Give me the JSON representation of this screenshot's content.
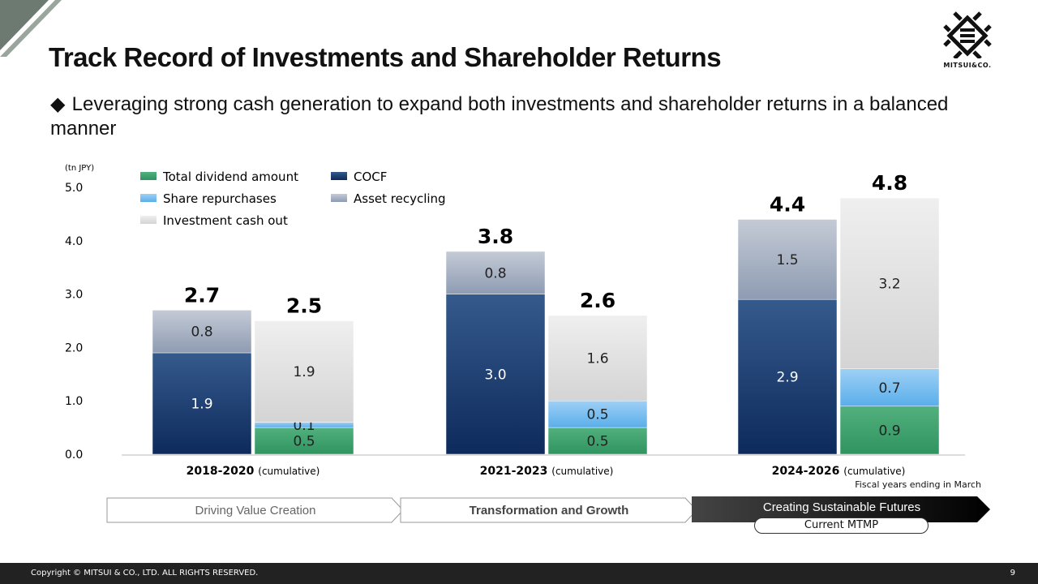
{
  "header": {
    "title": "Track Record of Investments and Shareholder Returns",
    "subtitle": "Leveraging strong cash generation to expand both investments and shareholder returns in a balanced manner",
    "bullet": "◆"
  },
  "logo": {
    "text": "MITSUI&CO."
  },
  "chart_data": {
    "type": "bar",
    "stacked": true,
    "ylabel": "(tn JPY)",
    "ylim": [
      0,
      5
    ],
    "yticks": [
      "0.0",
      "1.0",
      "2.0",
      "3.0",
      "4.0",
      "5.0"
    ],
    "grid": false,
    "legend_position": "top-left",
    "colors": {
      "Total dividend amount": "#3a9e68",
      "Share repurchases": "#6db8ef",
      "Investment cash out": "#e2e2e2",
      "COCF": "#173a70",
      "Asset recycling": "#a6b1c3"
    },
    "legend": [
      "Total dividend amount",
      "COCF",
      "Share repurchases",
      "Asset recycling",
      "Investment cash out"
    ],
    "groups": [
      {
        "label": "2018-2020",
        "suffix": "(cumulative)",
        "bars": [
          {
            "total": "2.7",
            "segments": [
              {
                "series": "COCF",
                "value": 1.9
              },
              {
                "series": "Asset recycling",
                "value": 0.8
              }
            ]
          },
          {
            "total": "2.5",
            "segments": [
              {
                "series": "Total dividend amount",
                "value": 0.5
              },
              {
                "series": "Share repurchases",
                "value": 0.1
              },
              {
                "series": "Investment cash out",
                "value": 1.9
              }
            ]
          }
        ]
      },
      {
        "label": "2021-2023",
        "suffix": "(cumulative)",
        "bars": [
          {
            "total": "3.8",
            "segments": [
              {
                "series": "COCF",
                "value": 3.0
              },
              {
                "series": "Asset recycling",
                "value": 0.8
              }
            ]
          },
          {
            "total": "2.6",
            "segments": [
              {
                "series": "Total dividend amount",
                "value": 0.5
              },
              {
                "series": "Share repurchases",
                "value": 0.5
              },
              {
                "series": "Investment cash out",
                "value": 1.6
              }
            ]
          }
        ]
      },
      {
        "label": "2024-2026",
        "suffix": "(cumulative)",
        "bars": [
          {
            "total": "4.4",
            "segments": [
              {
                "series": "COCF",
                "value": 2.9
              },
              {
                "series": "Asset recycling",
                "value": 1.5
              }
            ]
          },
          {
            "total": "4.8",
            "segments": [
              {
                "series": "Total dividend amount",
                "value": 0.9
              },
              {
                "series": "Share repurchases",
                "value": 0.7
              },
              {
                "series": "Investment cash out",
                "value": 3.2
              }
            ]
          }
        ]
      }
    ]
  },
  "note": "Fiscal years ending in March",
  "phases": [
    "Driving Value Creation",
    "Transformation and Growth",
    "Creating Sustainable Futures"
  ],
  "current_label": "Current MTMP",
  "footer": {
    "copyright": "Copyright © MITSUI & CO., LTD. ALL RIGHTS RESERVED.",
    "page": "9"
  }
}
